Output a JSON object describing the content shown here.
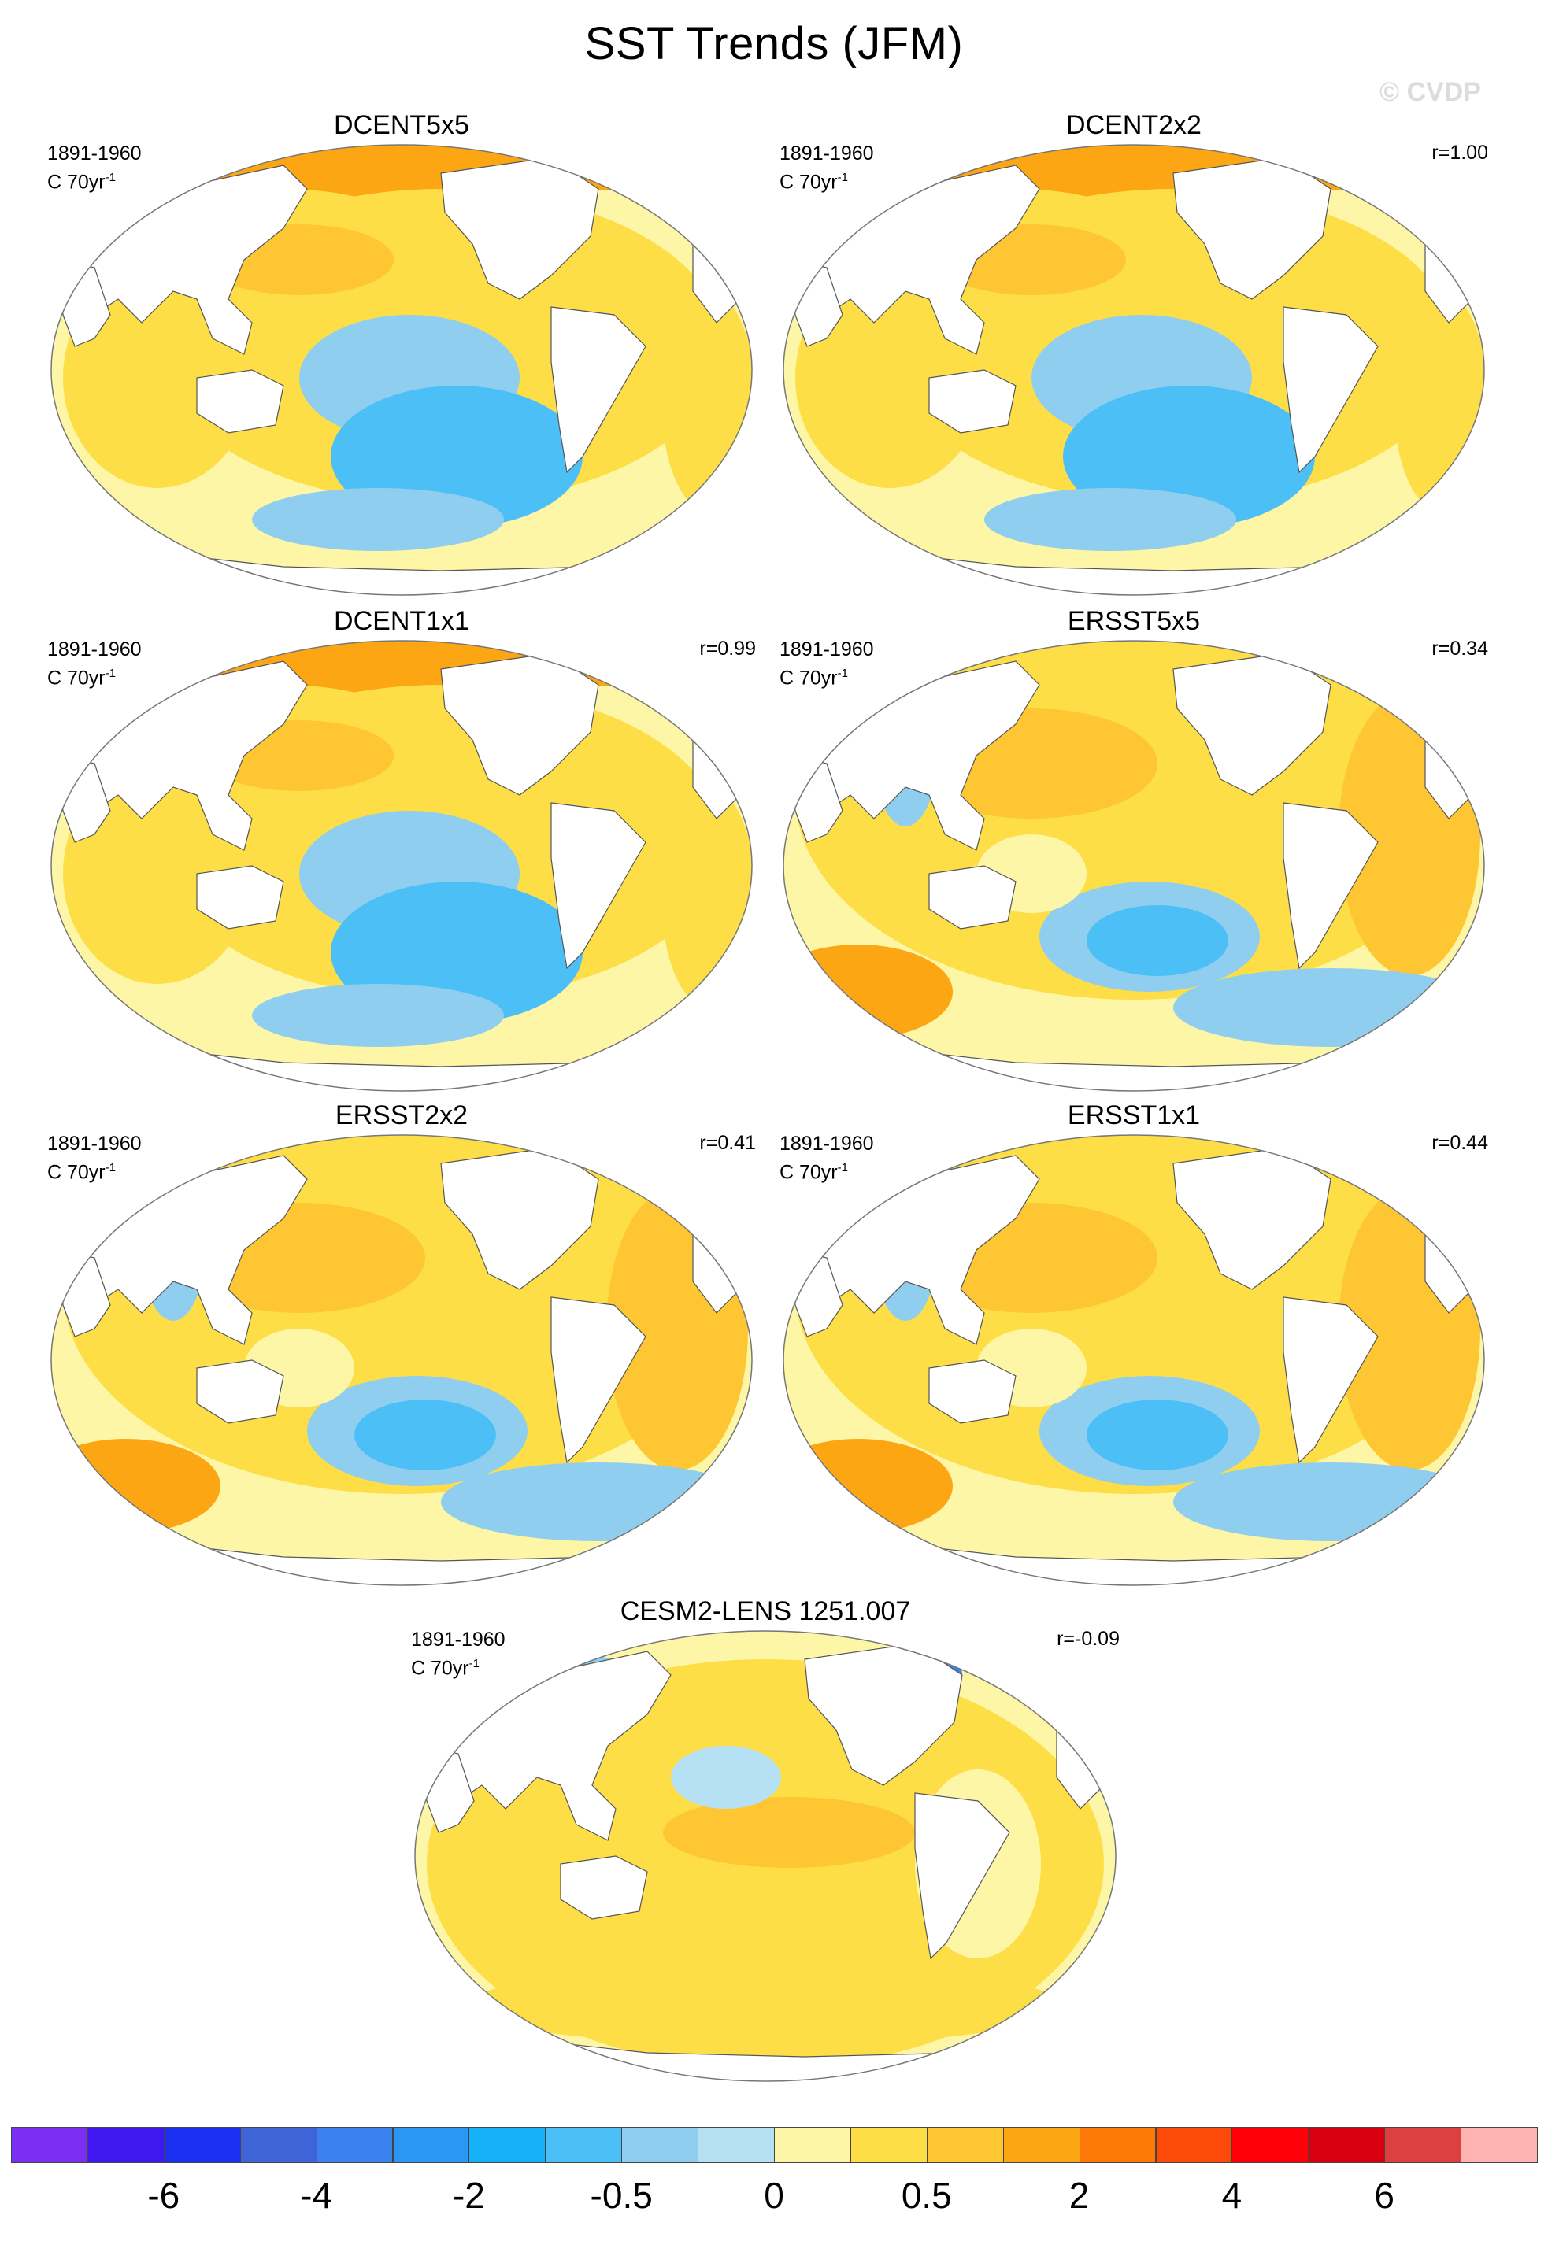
{
  "title": "SST Trends (JFM)",
  "watermark": "© CVDP",
  "panels": [
    {
      "name": "DCENT5x5",
      "period": "1891-1960",
      "units_base": "C 70yr",
      "units_exp": "-1",
      "r": "",
      "style": 0
    },
    {
      "name": "DCENT2x2",
      "period": "1891-1960",
      "units_base": "C 70yr",
      "units_exp": "-1",
      "r": "r=1.00",
      "style": 0
    },
    {
      "name": "DCENT1x1",
      "period": "1891-1960",
      "units_base": "C 70yr",
      "units_exp": "-1",
      "r": "r=0.99",
      "style": 0
    },
    {
      "name": "ERSST5x5",
      "period": "1891-1960",
      "units_base": "C 70yr",
      "units_exp": "-1",
      "r": "r=0.34",
      "style": 1
    },
    {
      "name": "ERSST2x2",
      "period": "1891-1960",
      "units_base": "C 70yr",
      "units_exp": "-1",
      "r": "r=0.41",
      "style": 1
    },
    {
      "name": "ERSST1x1",
      "period": "1891-1960",
      "units_base": "C 70yr",
      "units_exp": "-1",
      "r": "r=0.44",
      "style": 1
    },
    {
      "name": "CESM2-LENS 1251.007",
      "period": "1891-1960",
      "units_base": "C 70yr",
      "units_exp": "-1",
      "r": "r=-0.09",
      "style": 2
    }
  ],
  "colorbar": {
    "colors": [
      "#7b2ff0",
      "#3f18f0",
      "#1a2ff0",
      "#3f64d8",
      "#3c82ee",
      "#2c96f4",
      "#16b0f6",
      "#4cc0f6",
      "#90cef0",
      "#b6e0f4",
      "#fdf6a6",
      "#fdde46",
      "#fdc632",
      "#fda614",
      "#fd7a08",
      "#fd4a08",
      "#fd0008",
      "#d80010",
      "#dc4040",
      "#ffb4b4"
    ],
    "labels": [
      "-6",
      "-4",
      "-2",
      "-0.5",
      "0",
      "0.5",
      "2",
      "4",
      "6"
    ]
  }
}
